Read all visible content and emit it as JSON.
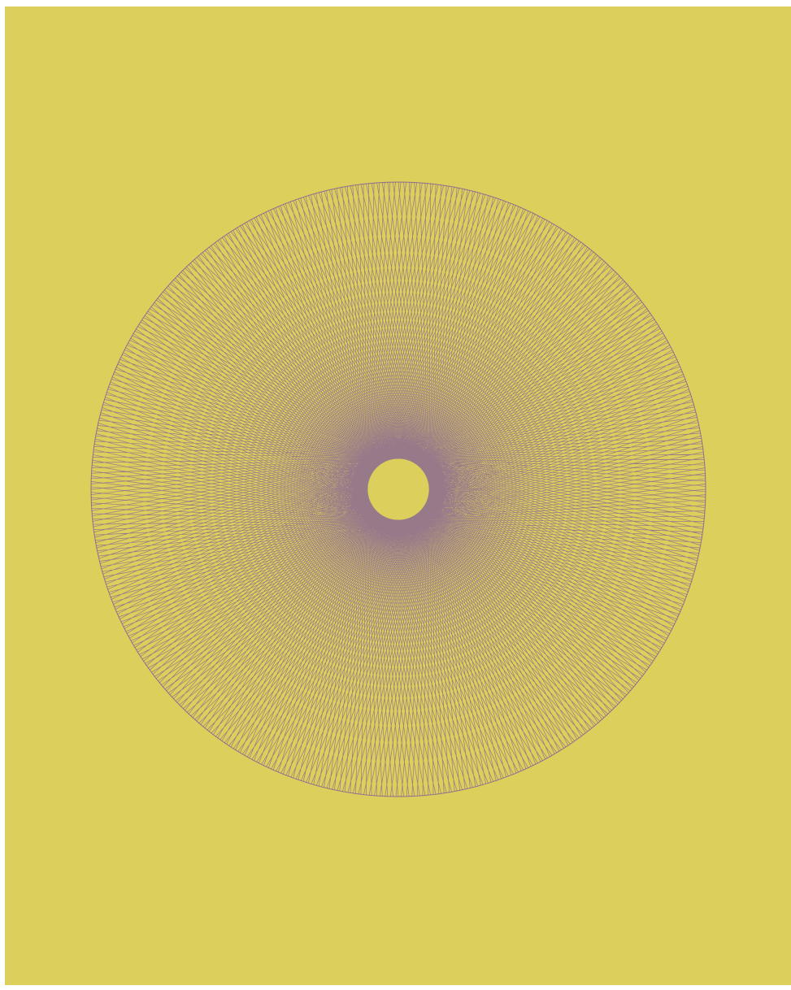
{
  "artwork": {
    "background": "#dccf5c",
    "stroke": "#5e34b0"
  }
}
